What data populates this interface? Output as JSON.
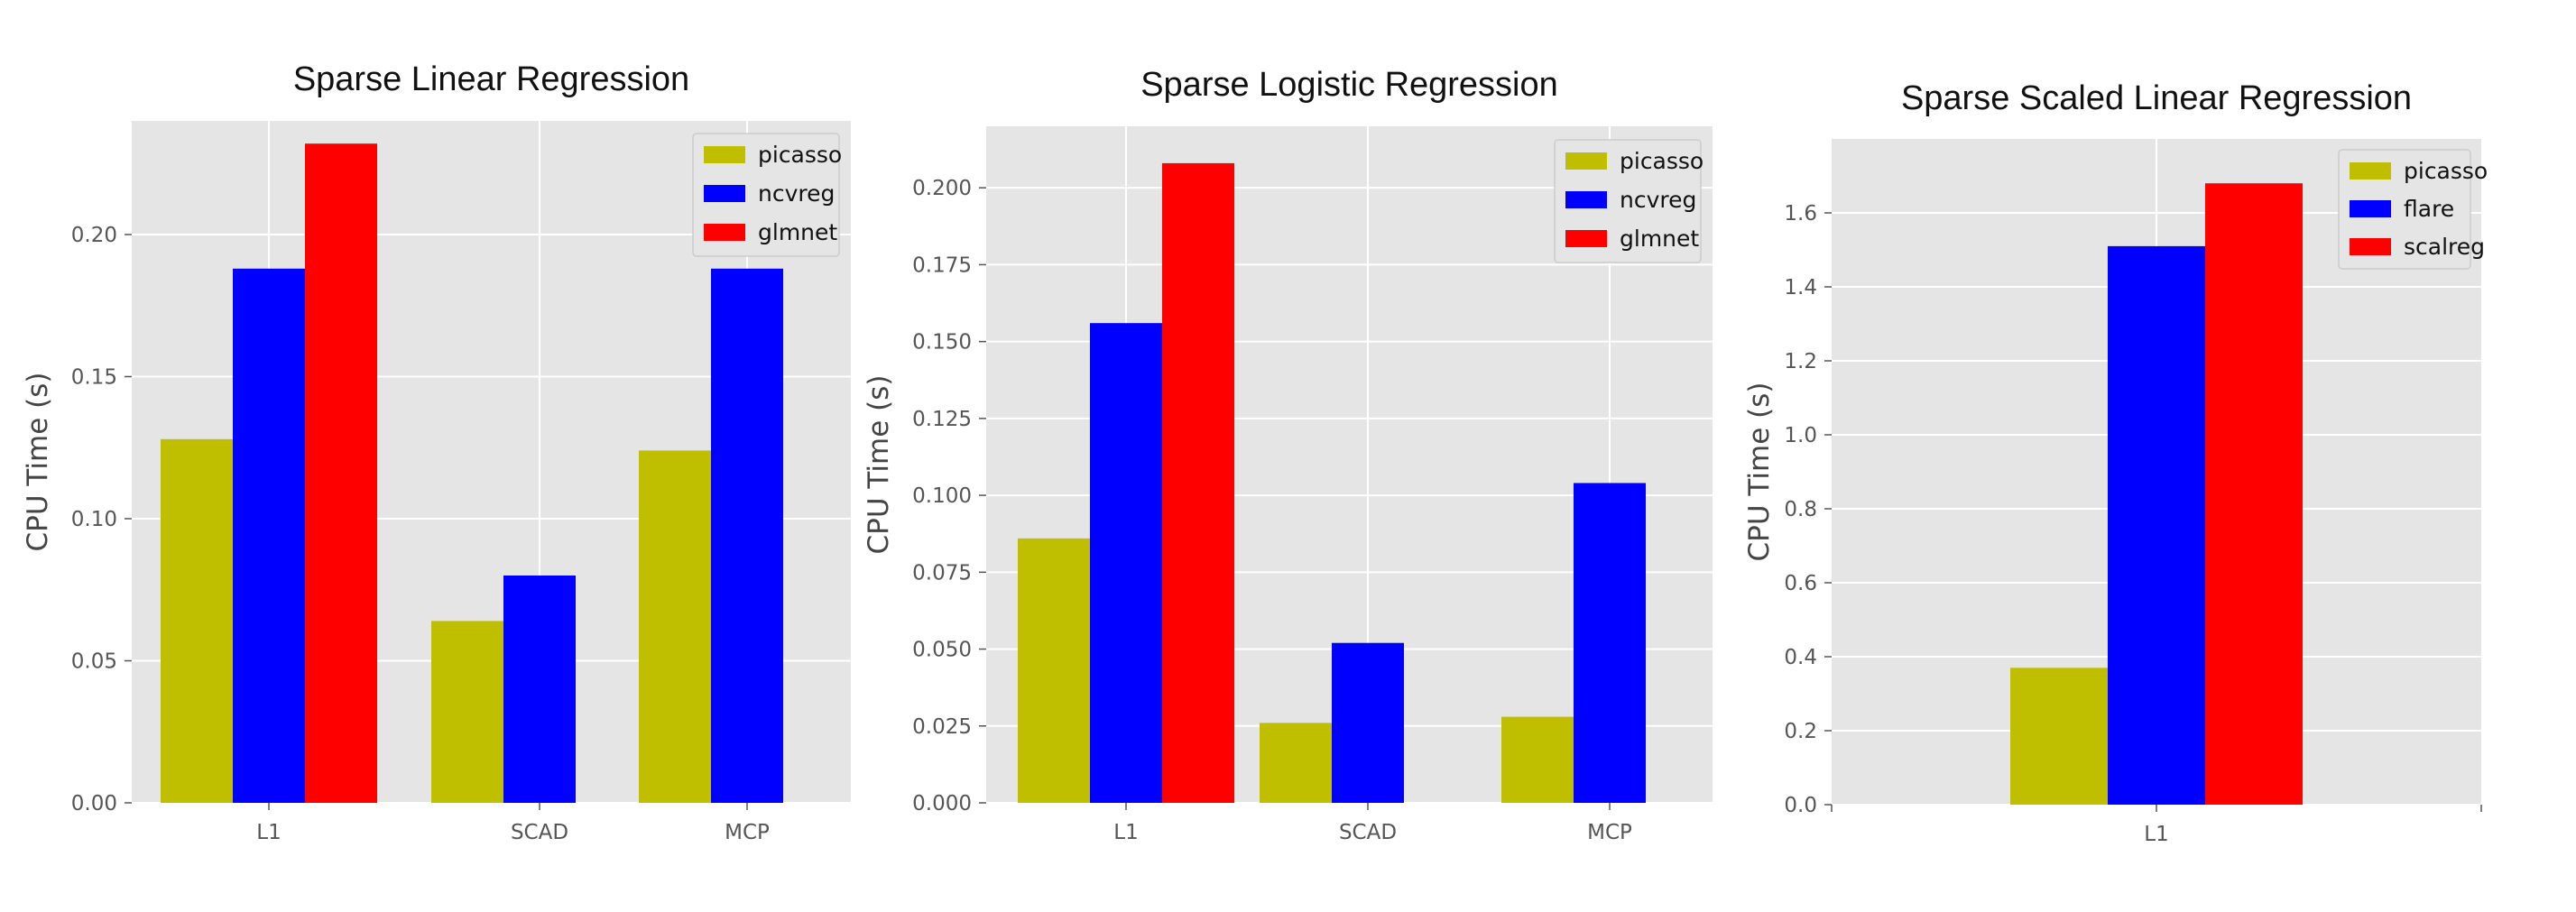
{
  "chart_data": [
    {
      "type": "bar",
      "title": "Sparse Linear Regression",
      "xlabel": "",
      "ylabel": "CPU Time (s)",
      "categories": [
        "L1",
        "SCAD",
        "MCP"
      ],
      "ylim": [
        0,
        0.24
      ],
      "yticks": [
        0.0,
        0.05,
        0.1,
        0.15,
        0.2
      ],
      "ytick_labels": [
        "0.00",
        "0.05",
        "0.10",
        "0.15",
        "0.20"
      ],
      "grid": true,
      "legend_position": "top-right",
      "series": [
        {
          "name": "picasso",
          "color": "#bfbf00",
          "values": [
            0.128,
            0.064,
            0.124
          ]
        },
        {
          "name": "ncvreg",
          "color": "#0000ff",
          "values": [
            0.188,
            0.08,
            0.188
          ]
        },
        {
          "name": "glmnet",
          "color": "#ff0000",
          "values": [
            0.232,
            null,
            null
          ]
        }
      ]
    },
    {
      "type": "bar",
      "title": "Sparse Logistic Regression",
      "xlabel": "",
      "ylabel": "CPU Time (s)",
      "categories": [
        "L1",
        "SCAD",
        "MCP"
      ],
      "ylim": [
        0,
        0.22
      ],
      "yticks": [
        0.0,
        0.025,
        0.05,
        0.075,
        0.1,
        0.125,
        0.15,
        0.175,
        0.2
      ],
      "ytick_labels": [
        "0.000",
        "0.025",
        "0.050",
        "0.075",
        "0.100",
        "0.125",
        "0.150",
        "0.175",
        "0.200"
      ],
      "grid": true,
      "legend_position": "top-right",
      "series": [
        {
          "name": "picasso",
          "color": "#bfbf00",
          "values": [
            0.086,
            0.026,
            0.028
          ]
        },
        {
          "name": "ncvreg",
          "color": "#0000ff",
          "values": [
            0.156,
            0.052,
            0.104
          ]
        },
        {
          "name": "glmnet",
          "color": "#ff0000",
          "values": [
            0.208,
            null,
            null
          ]
        }
      ]
    },
    {
      "type": "bar",
      "title": "Sparse Scaled Linear Regression",
      "xlabel": "",
      "ylabel": "CPU Time (s)",
      "categories": [
        "L1"
      ],
      "ylim": [
        0,
        1.8
      ],
      "yticks": [
        0.0,
        0.2,
        0.4,
        0.6,
        0.8,
        1.0,
        1.2,
        1.4,
        1.6
      ],
      "ytick_labels": [
        "0.0",
        "0.2",
        "0.4",
        "0.6",
        "0.8",
        "1.0",
        "1.2",
        "1.4",
        "1.6"
      ],
      "grid": true,
      "legend_position": "top-right",
      "series": [
        {
          "name": "picasso",
          "color": "#bfbf00",
          "values": [
            0.37
          ]
        },
        {
          "name": "flare",
          "color": "#0000ff",
          "values": [
            1.51
          ]
        },
        {
          "name": "scalreg",
          "color": "#ff0000",
          "values": [
            1.68
          ]
        }
      ]
    }
  ],
  "colors": {
    "axes_background": "#e5e5e5",
    "grid": "#ffffff",
    "legend_background": "#e5e5e5"
  }
}
